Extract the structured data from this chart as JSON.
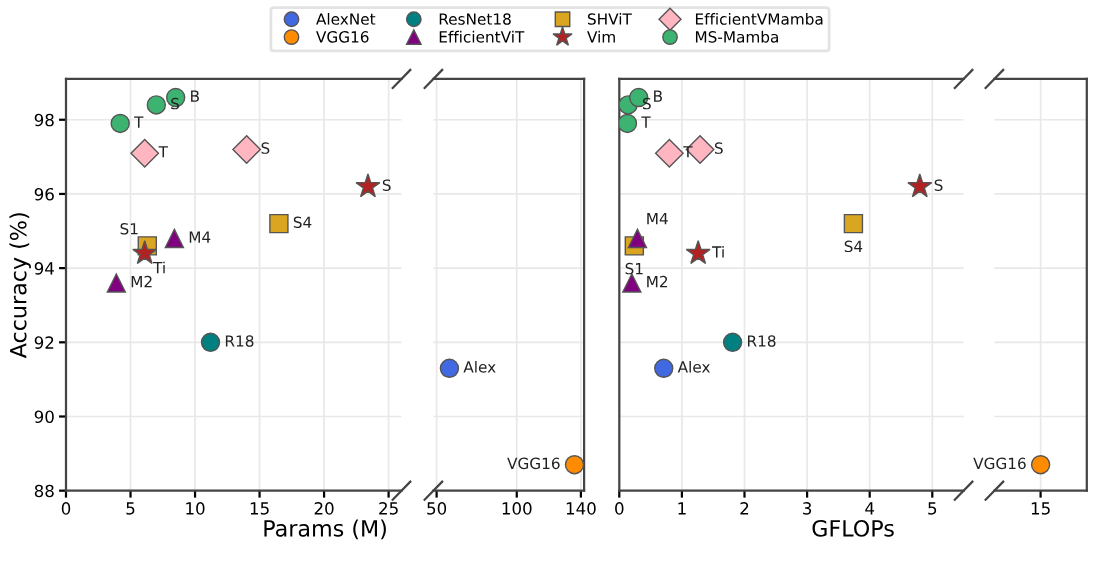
{
  "chart_data": [
    {
      "type": "scatter",
      "xlabel": "Params (M)",
      "ylabel": "Accuracy (%)",
      "xlim": [
        0,
        26
      ],
      "xticks": [
        0,
        5,
        10,
        15,
        20,
        25
      ],
      "ylim": [
        88,
        99.1
      ],
      "yticks": [
        88,
        90,
        92,
        94,
        96,
        98
      ],
      "grid": true,
      "legend": "top",
      "series": [
        {
          "name": "ResNet18",
          "color": "#008080",
          "marker": "circle",
          "x": [
            11.2
          ],
          "values": [
            92.0
          ]
        },
        {
          "name": "EfficientViT",
          "color": "#800080",
          "marker": "triangle",
          "x": [
            8.4,
            3.9
          ],
          "values": [
            94.8,
            93.6
          ]
        },
        {
          "name": "SHViT",
          "color": "#daa520",
          "marker": "square",
          "x": [
            16.5,
            6.3
          ],
          "values": [
            95.2,
            94.6
          ]
        },
        {
          "name": "Vim",
          "color": "#b22222",
          "marker": "star",
          "x": [
            23.4,
            6.1
          ],
          "values": [
            96.2,
            94.4
          ]
        },
        {
          "name": "EfficientVMamba",
          "color": "#ffb6c1",
          "marker": "diamond",
          "x": [
            6.1,
            14.0
          ],
          "values": [
            97.1,
            97.2
          ]
        },
        {
          "name": "MS-Mamba",
          "color": "#3cb371",
          "marker": "circle",
          "x": [
            4.2,
            7.0,
            8.5
          ],
          "values": [
            97.9,
            98.4,
            98.6
          ]
        }
      ],
      "annotations": [
        {
          "text": "T",
          "x": 4.2,
          "y": 97.9
        },
        {
          "text": "S",
          "x": 7.0,
          "y": 98.4
        },
        {
          "text": "B",
          "x": 8.5,
          "y": 98.6
        },
        {
          "text": "T",
          "x": 6.1,
          "y": 97.1
        },
        {
          "text": "S",
          "x": 14.0,
          "y": 97.2
        },
        {
          "text": "S",
          "x": 23.4,
          "y": 96.2
        },
        {
          "text": "Ti",
          "x": 6.1,
          "y": 94.4
        },
        {
          "text": "S4",
          "x": 16.5,
          "y": 95.2
        },
        {
          "text": "S1",
          "x": 6.3,
          "y": 94.6
        },
        {
          "text": "M4",
          "x": 8.4,
          "y": 94.8
        },
        {
          "text": "M2",
          "x": 3.9,
          "y": 93.6
        },
        {
          "text": "R18",
          "x": 11.2,
          "y": 92.0
        }
      ]
    },
    {
      "type": "scatter",
      "xlim": [
        48,
        142
      ],
      "xticks": [
        50,
        100,
        140
      ],
      "ylim": [
        88,
        99.1
      ],
      "grid": true,
      "tick_labels": "x",
      "legend": "top",
      "series": [
        {
          "name": "AlexNet",
          "color": "#4169e1",
          "marker": "circle",
          "x": [
            58
          ],
          "values": [
            91.3
          ]
        },
        {
          "name": "VGG16",
          "color": "#ff8c00",
          "marker": "circle",
          "x": [
            136
          ],
          "values": [
            88.7
          ]
        }
      ],
      "annotations": [
        {
          "text": "Alex",
          "x": 58,
          "y": 91.3
        },
        {
          "text": "VGG16",
          "x": 136,
          "y": 88.7
        }
      ]
    },
    {
      "type": "scatter",
      "xlabel": "GFLOPs",
      "xlim": [
        0,
        5.5
      ],
      "xticks": [
        0,
        1,
        2,
        3,
        4,
        5
      ],
      "ylim": [
        88,
        99.1
      ],
      "grid": true,
      "tick_labels": "x",
      "series": [
        {
          "color": "#4169e1",
          "marker": "circle",
          "x": [
            0.71
          ],
          "values": [
            91.3
          ]
        },
        {
          "color": "#008080",
          "marker": "circle",
          "x": [
            1.81
          ],
          "values": [
            92.0
          ]
        },
        {
          "color": "#daa520",
          "marker": "square",
          "x": [
            3.74,
            0.24
          ],
          "values": [
            95.2,
            94.6
          ]
        },
        {
          "color": "#800080",
          "marker": "triangle",
          "x": [
            0.29,
            0.2
          ],
          "values": [
            94.8,
            93.6
          ]
        },
        {
          "color": "#b22222",
          "marker": "star",
          "x": [
            4.8,
            1.26
          ],
          "values": [
            96.2,
            94.4
          ]
        },
        {
          "color": "#ffb6c1",
          "marker": "diamond",
          "x": [
            0.8,
            1.29
          ],
          "values": [
            97.1,
            97.2
          ]
        },
        {
          "color": "#3cb371",
          "marker": "circle",
          "x": [
            0.13,
            0.14,
            0.31
          ],
          "values": [
            97.9,
            98.4,
            98.6
          ]
        }
      ],
      "annotations": [
        {
          "text": "T",
          "x": 0.13,
          "y": 97.9
        },
        {
          "text": "S",
          "x": 0.14,
          "y": 98.4
        },
        {
          "text": "B",
          "x": 0.31,
          "y": 98.6
        },
        {
          "text": "T",
          "x": 0.8,
          "y": 97.1
        },
        {
          "text": "S",
          "x": 1.29,
          "y": 97.2
        },
        {
          "text": "S",
          "x": 4.8,
          "y": 96.2
        },
        {
          "text": "Ti",
          "x": 1.26,
          "y": 94.4
        },
        {
          "text": "S4",
          "x": 3.74,
          "y": 95.2
        },
        {
          "text": "S1",
          "x": 0.24,
          "y": 94.6
        },
        {
          "text": "M4",
          "x": 0.29,
          "y": 94.8
        },
        {
          "text": "M2",
          "x": 0.2,
          "y": 93.6
        },
        {
          "text": "R18",
          "x": 1.81,
          "y": 92.0
        },
        {
          "text": "Alex",
          "x": 0.71,
          "y": 91.3
        }
      ]
    },
    {
      "type": "scatter",
      "categories": [
        "15"
      ],
      "ylim": [
        88,
        99.1
      ],
      "grid": true,
      "tick_labels": "x",
      "series": [
        {
          "color": "#ff8c00",
          "marker": "circle",
          "values": [
            88.7
          ]
        }
      ],
      "annotations": [
        {
          "text": "VGG16",
          "x": "15",
          "y": 88.7
        }
      ]
    }
  ]
}
